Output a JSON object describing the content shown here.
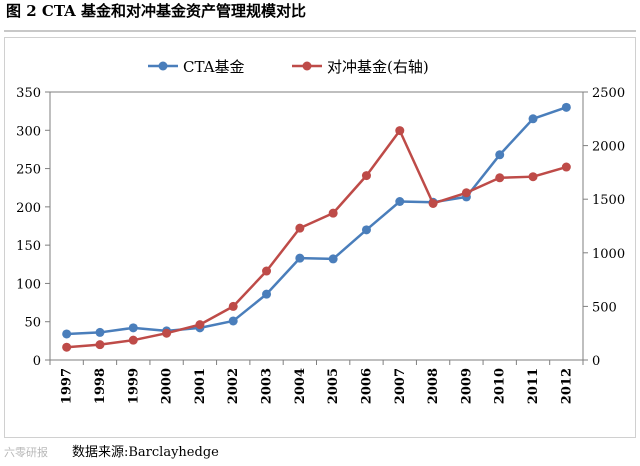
{
  "title": "图 2 CTA 基金和对冲基金资产管理规模对比",
  "source": "数据来源:Barclayhedge",
  "watermark": "六零研报",
  "colors": {
    "cta": "#4a7ebb",
    "hedge": "#be4b48",
    "axis": "#7f7f7f",
    "text": "#000000"
  },
  "chart_data": {
    "type": "line",
    "title": "图 2 CTA 基金和对冲基金资产管理规模对比",
    "categories": [
      "1997",
      "1998",
      "1999",
      "2000",
      "2001",
      "2002",
      "2003",
      "2004",
      "2005",
      "2006",
      "2007",
      "2008",
      "2009",
      "2010",
      "2011",
      "2012"
    ],
    "left_axis": {
      "ylim": [
        0,
        350
      ],
      "ticks": [
        0,
        50,
        100,
        150,
        200,
        250,
        300,
        350
      ]
    },
    "right_axis": {
      "ylim": [
        0,
        2500
      ],
      "ticks": [
        0,
        500,
        1000,
        1500,
        2000,
        2500
      ]
    },
    "legend_position": "top-center",
    "series": [
      {
        "name": "CTA基金",
        "axis": "left",
        "color": "#4a7ebb",
        "values": [
          34,
          36,
          42,
          38,
          42,
          51,
          86,
          133,
          132,
          170,
          207,
          206,
          213,
          268,
          315,
          330
        ]
      },
      {
        "name": "对冲基金(右轴)",
        "axis": "right",
        "color": "#be4b48",
        "values": [
          119,
          143,
          185,
          250,
          330,
          500,
          830,
          1230,
          1370,
          1720,
          2140,
          1460,
          1560,
          1700,
          1710,
          1800
        ]
      }
    ]
  }
}
